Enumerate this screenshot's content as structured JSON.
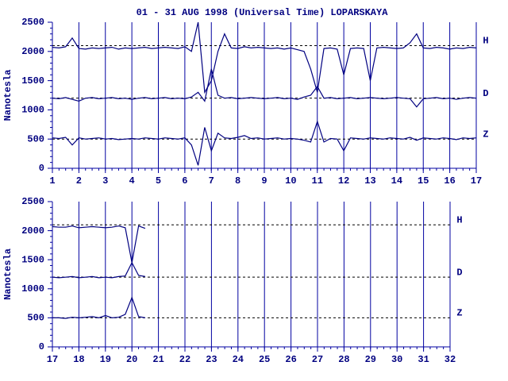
{
  "chart_data": [
    {
      "type": "line",
      "title": "01 - 31 AUG 1998 (Universal Time) LOPARSKAYA",
      "ylabel": "Nanotesla",
      "x": [
        1,
        1.25,
        1.5,
        1.75,
        2,
        2.25,
        2.5,
        2.75,
        3,
        3.25,
        3.5,
        3.75,
        4,
        4.25,
        4.5,
        4.75,
        5,
        5.25,
        5.5,
        5.75,
        6,
        6.25,
        6.5,
        6.75,
        7,
        7.25,
        7.5,
        7.75,
        8,
        8.25,
        8.5,
        8.75,
        9,
        9.25,
        9.5,
        9.75,
        10,
        10.25,
        10.5,
        10.75,
        11,
        11.25,
        11.5,
        11.75,
        12,
        12.25,
        12.5,
        12.75,
        13,
        13.25,
        13.5,
        13.75,
        14,
        14.25,
        14.5,
        14.75,
        15,
        15.25,
        15.5,
        15.75,
        16,
        16.25,
        16.5,
        16.75,
        17
      ],
      "xlim": [
        1,
        17
      ],
      "xticks": [
        1,
        2,
        3,
        4,
        5,
        6,
        7,
        8,
        9,
        10,
        11,
        12,
        13,
        14,
        15,
        16,
        17
      ],
      "xminor": 0.25,
      "ylim": [
        0,
        2500
      ],
      "yticks": [
        0,
        500,
        1000,
        1500,
        2000,
        2500
      ],
      "yminor": 100,
      "grid": true,
      "series": [
        {
          "name": "H",
          "color": "#000080",
          "baseline": 2100,
          "values": [
            2070,
            2060,
            2080,
            2230,
            2050,
            2040,
            2060,
            2050,
            2060,
            2070,
            2040,
            2060,
            2050,
            2060,
            2070,
            2050,
            2060,
            2070,
            2060,
            2050,
            2080,
            2000,
            2500,
            1300,
            1500,
            2000,
            2300,
            2060,
            2050,
            2080,
            2060,
            2070,
            2060,
            2050,
            2060,
            2040,
            2060,
            2030,
            2000,
            1700,
            1300,
            2050,
            2060,
            2040,
            1600,
            2050,
            2060,
            2050,
            1500,
            2060,
            2070,
            2060,
            2050,
            2060,
            2150,
            2300,
            2060,
            2050,
            2070,
            2060,
            2040,
            2060,
            2050,
            2070,
            2060
          ]
        },
        {
          "name": "D",
          "color": "#000080",
          "baseline": 1200,
          "values": [
            1200,
            1190,
            1210,
            1180,
            1150,
            1200,
            1210,
            1190,
            1200,
            1210,
            1190,
            1200,
            1180,
            1200,
            1210,
            1190,
            1200,
            1210,
            1190,
            1200,
            1190,
            1220,
            1300,
            1150,
            1700,
            1250,
            1200,
            1210,
            1190,
            1200,
            1210,
            1200,
            1190,
            1200,
            1210,
            1190,
            1200,
            1180,
            1220,
            1250,
            1400,
            1200,
            1210,
            1190,
            1200,
            1210,
            1190,
            1200,
            1210,
            1200,
            1190,
            1200,
            1210,
            1200,
            1190,
            1050,
            1190,
            1200,
            1210,
            1190,
            1200,
            1180,
            1200,
            1210,
            1200
          ]
        },
        {
          "name": "Z",
          "color": "#000080",
          "baseline": 500,
          "values": [
            520,
            510,
            530,
            400,
            520,
            500,
            510,
            520,
            500,
            510,
            490,
            500,
            510,
            500,
            520,
            510,
            500,
            520,
            510,
            500,
            520,
            400,
            50,
            700,
            300,
            600,
            520,
            510,
            530,
            560,
            510,
            520,
            500,
            510,
            520,
            500,
            510,
            500,
            480,
            450,
            800,
            450,
            510,
            500,
            300,
            520,
            510,
            500,
            520,
            510,
            500,
            520,
            510,
            500,
            530,
            480,
            520,
            510,
            500,
            520,
            510,
            490,
            520,
            510,
            520
          ]
        }
      ]
    },
    {
      "type": "line",
      "ylabel": "Nanotesla",
      "x": [
        17,
        17.25,
        17.5,
        17.75,
        18,
        18.25,
        18.5,
        18.75,
        19,
        19.25,
        19.5,
        19.75,
        20,
        20.25,
        20.5
      ],
      "xlim": [
        17,
        32
      ],
      "xticks": [
        17,
        18,
        19,
        20,
        21,
        22,
        23,
        24,
        25,
        26,
        27,
        28,
        29,
        30,
        31,
        32
      ],
      "xminor": 0.25,
      "ylim": [
        0,
        2500
      ],
      "yticks": [
        0,
        500,
        1000,
        1500,
        2000,
        2500
      ],
      "yminor": 100,
      "grid": true,
      "series": [
        {
          "name": "H",
          "color": "#000080",
          "baseline": 2100,
          "values": [
            2070,
            2060,
            2060,
            2080,
            2050,
            2060,
            2070,
            2060,
            2050,
            2060,
            2080,
            2050,
            1450,
            2080,
            2040
          ]
        },
        {
          "name": "D",
          "color": "#000080",
          "baseline": 1200,
          "values": [
            1200,
            1190,
            1200,
            1210,
            1190,
            1200,
            1210,
            1190,
            1200,
            1190,
            1210,
            1220,
            1450,
            1230,
            1210
          ]
        },
        {
          "name": "Z",
          "color": "#000080",
          "baseline": 500,
          "values": [
            500,
            500,
            490,
            510,
            500,
            510,
            520,
            500,
            540,
            500,
            510,
            560,
            850,
            520,
            500
          ]
        }
      ]
    }
  ]
}
